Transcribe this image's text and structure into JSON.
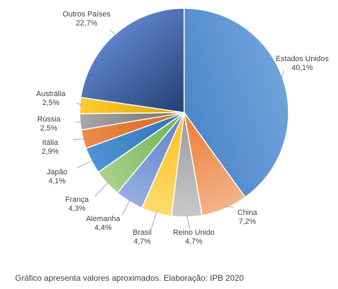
{
  "caption": "Gráfico apresenta valores aproximados. Elaboração: IPB 2020",
  "chart_data": {
    "type": "pie",
    "slices": [
      {
        "name": "Estados Unidos",
        "label": "40,1%",
        "value": 40.1,
        "color": "#6fa3db",
        "colorDark": "#4d86c8"
      },
      {
        "name": "China",
        "label": "7,2%",
        "value": 7.2,
        "color": "#f2b389",
        "colorDark": "#ec7b33"
      },
      {
        "name": "Reino Unido",
        "label": "4,7%",
        "value": 4.7,
        "color": "#c9c9c9",
        "colorDark": "#9a9a9a"
      },
      {
        "name": "Brasil",
        "label": "4,7%",
        "value": 4.7,
        "color": "#ffdb6d",
        "colorDark": "#fbbf1a"
      },
      {
        "name": "Alemanha",
        "label": "4,4%",
        "value": 4.4,
        "color": "#96aee0",
        "colorDark": "#5a7fcc"
      },
      {
        "name": "França",
        "label": "4,3%",
        "value": 4.3,
        "color": "#a9d18e",
        "colorDark": "#6fb04a"
      },
      {
        "name": "Japão",
        "label": "4,1%",
        "value": 4.1,
        "color": "#4d93d3",
        "colorDark": "#2f72b8"
      },
      {
        "name": "Itália",
        "label": "2,9%",
        "value": 2.9,
        "color": "#ee8a48",
        "colorDark": "#d5651f"
      },
      {
        "name": "Rússia",
        "label": "2,5%",
        "value": 2.5,
        "color": "#a8a8a8",
        "colorDark": "#6e6e6e"
      },
      {
        "name": "Austrália",
        "label": "2,5%",
        "value": 2.5,
        "color": "#ffcc2e",
        "colorDark": "#d9a600"
      },
      {
        "name": "Outros Países",
        "label": "22,7%",
        "value": 22.7,
        "color": "#5d82c9",
        "colorDark": "#243f72"
      }
    ]
  }
}
